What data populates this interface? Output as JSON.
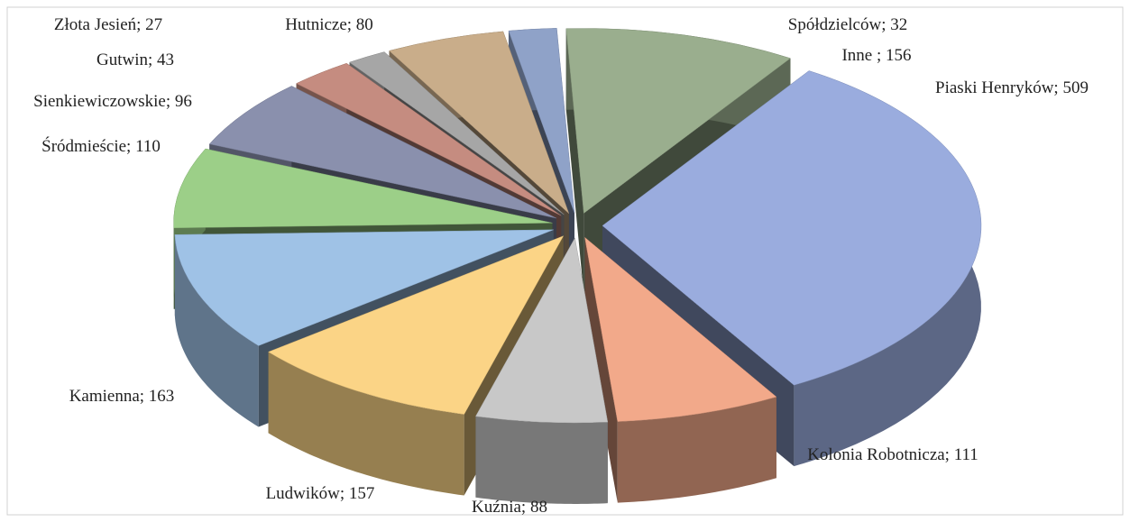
{
  "chart_data": {
    "type": "pie",
    "values": [
      32,
      156,
      509,
      111,
      88,
      157,
      163,
      110,
      96,
      43,
      27,
      80
    ],
    "value_labels": [
      "Spółdzielców; 32",
      "Inne ; 156",
      "Piaski Henryków; 509",
      "Kolonia Robotnicza; 111",
      "Kuźnia; 88",
      "Ludwików; 157",
      "Kamienna; 163",
      "Śródmieście; 110",
      "Sienkiewiczowskie; 96",
      "Gutwin; 43",
      "Złota Jesień; 27",
      "Hutnicze; 80"
    ],
    "colors": [
      "#8fa2c8",
      "#9aae8e",
      "#9aacde",
      "#f2a98a",
      "#c8c8c8",
      "#fbd486",
      "#9fc2e6",
      "#9ccf88",
      "#8a90ad",
      "#c58c80",
      "#a6a6a6",
      "#c9ad8a"
    ]
  }
}
